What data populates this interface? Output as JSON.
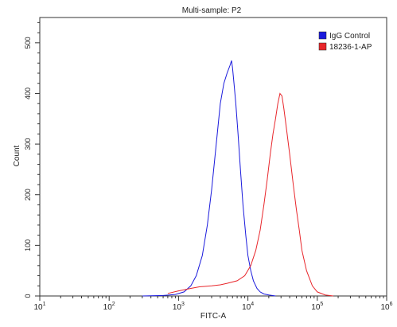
{
  "chart_data": {
    "type": "line",
    "title": "Multi-sample: P2",
    "xlabel": "FITC-A",
    "ylabel": "Count",
    "x_scale": "log",
    "xlim": [
      10,
      1000000
    ],
    "ylim": [
      0,
      550
    ],
    "x_ticks": [
      {
        "value": 10,
        "base": "10",
        "exp": "1"
      },
      {
        "value": 100,
        "base": "10",
        "exp": "2"
      },
      {
        "value": 1000,
        "base": "10",
        "exp": "3"
      },
      {
        "value": 10000,
        "base": "10",
        "exp": "4"
      },
      {
        "value": 100000,
        "base": "10",
        "exp": "5"
      },
      {
        "value": 1000000,
        "base": "10",
        "exp": "6"
      }
    ],
    "y_ticks": [
      0,
      100,
      200,
      300,
      400,
      500
    ],
    "grid": false,
    "legend_position": "top-right",
    "series": [
      {
        "name": "IgG Control",
        "color": "#1a1adc",
        "x": [
          300,
          600,
          900,
          1200,
          1500,
          1800,
          2200,
          2600,
          3000,
          3500,
          4000,
          4500,
          5000,
          5500,
          5800,
          6000,
          6300,
          6700,
          7200,
          7800,
          8500,
          9300,
          10000,
          11000,
          12000,
          13500,
          15000,
          17000,
          20000,
          25000
        ],
        "y": [
          0,
          1,
          3,
          8,
          20,
          40,
          80,
          140,
          210,
          300,
          380,
          420,
          440,
          455,
          465,
          450,
          420,
          380,
          320,
          250,
          180,
          120,
          80,
          50,
          30,
          15,
          8,
          4,
          2,
          0
        ]
      },
      {
        "name": "18236-1-AP",
        "color": "#e8262b",
        "x": [
          700,
          1000,
          1500,
          2000,
          3000,
          4000,
          5000,
          7000,
          9000,
          11000,
          13000,
          15000,
          17000,
          19000,
          21000,
          23000,
          25000,
          27000,
          29000,
          31000,
          33000,
          36000,
          40000,
          45000,
          50000,
          55000,
          60000,
          70000,
          85000,
          100000,
          130000,
          170000
        ],
        "y": [
          5,
          10,
          15,
          18,
          20,
          22,
          25,
          30,
          40,
          60,
          90,
          130,
          180,
          230,
          280,
          320,
          350,
          380,
          400,
          395,
          370,
          330,
          280,
          220,
          170,
          130,
          90,
          50,
          20,
          8,
          2,
          0
        ]
      }
    ]
  }
}
